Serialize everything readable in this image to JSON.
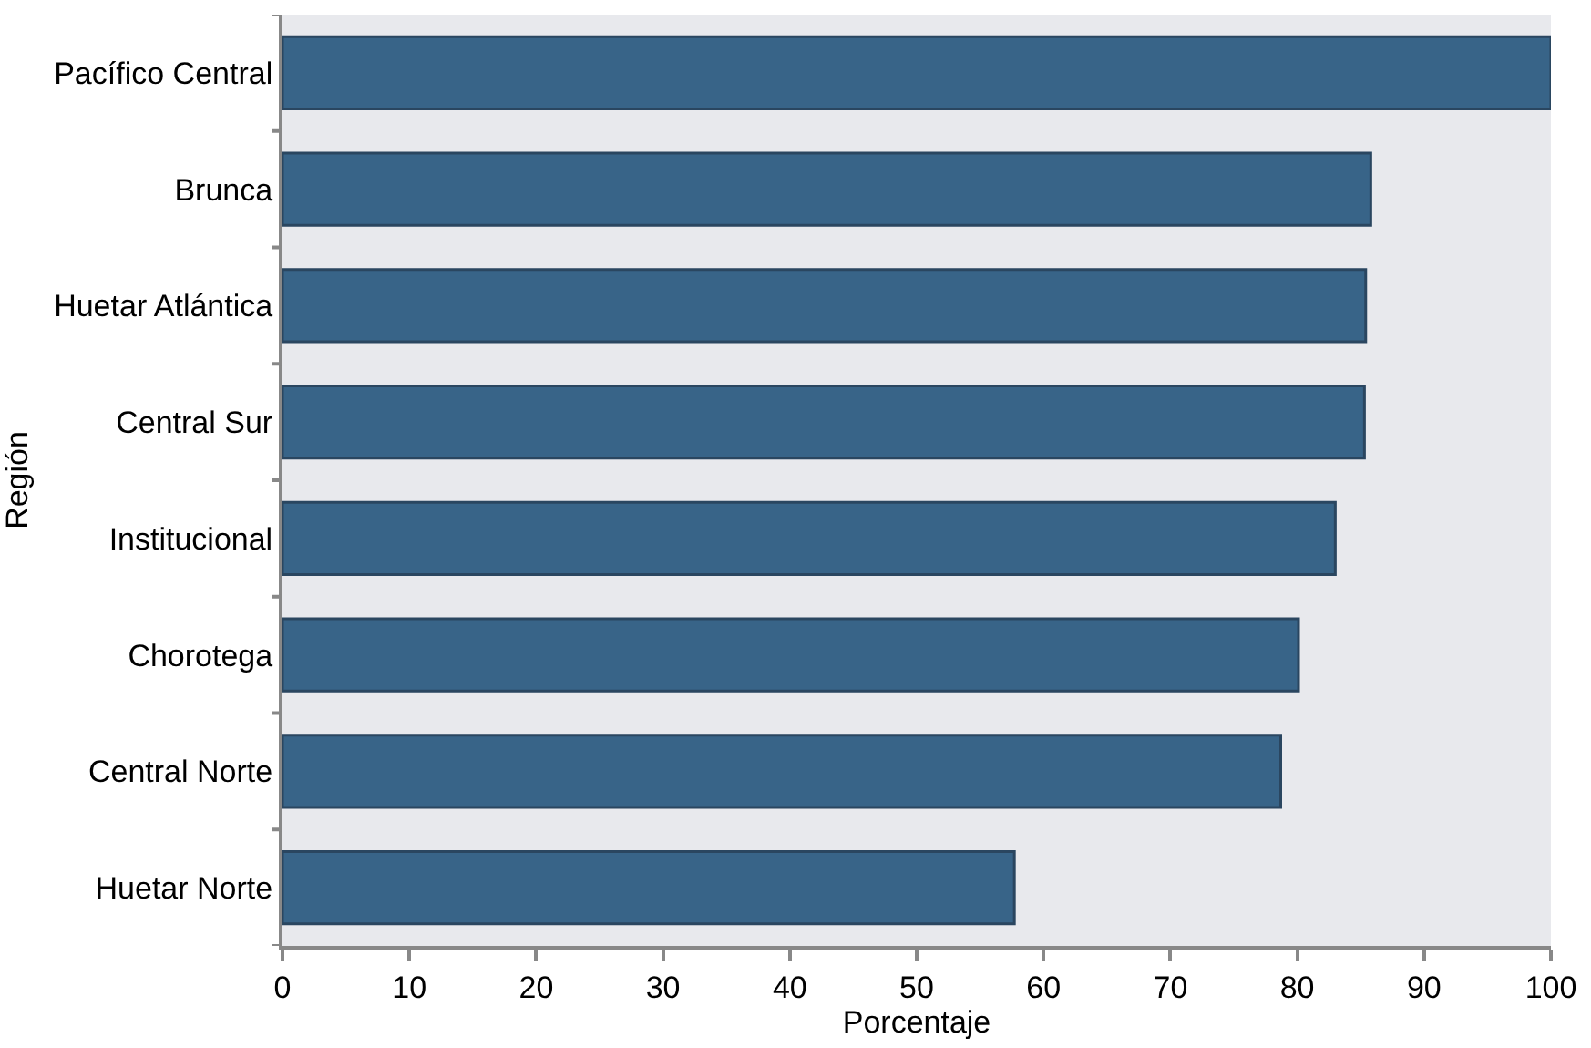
{
  "chart_data": {
    "type": "bar",
    "orientation": "horizontal",
    "xlabel": "Porcentaje",
    "ylabel": "Región",
    "categories": [
      "Pacífico Central",
      "Brunca",
      "Huetar Atlántica",
      "Central Sur",
      "Institucional",
      "Chorotega",
      "Central Norte",
      "Huetar Norte"
    ],
    "values": [
      100,
      85.8,
      85.4,
      85.3,
      83,
      80.1,
      78.7,
      57.7
    ],
    "color": "#386488",
    "xlim": [
      0,
      100
    ],
    "xticks": [
      0,
      10,
      20,
      30,
      40,
      50,
      60,
      70,
      80,
      90,
      100
    ],
    "grid": false,
    "legend": false
  }
}
